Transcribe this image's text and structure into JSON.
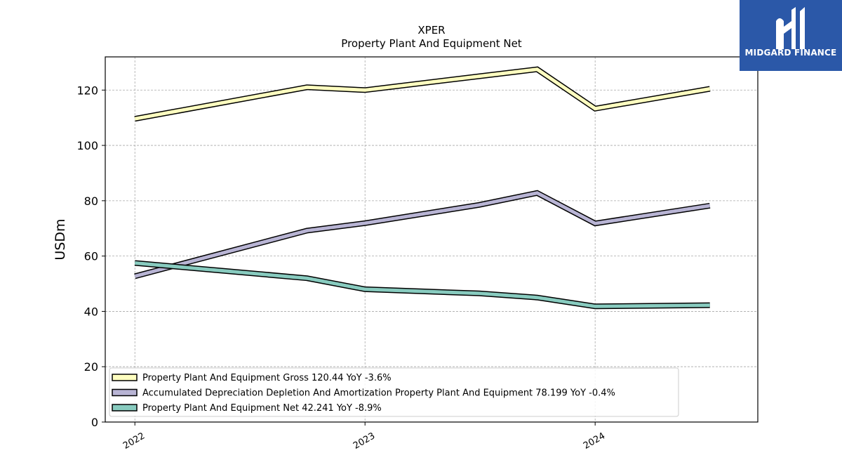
{
  "brand": {
    "name": "MIDGARD FINANCE",
    "bg_color": "#2b58a8"
  },
  "chart_data": {
    "type": "line",
    "title": "XPER",
    "subtitle": "Property Plant And Equipment Net",
    "xlabel": "",
    "ylabel": "USDm",
    "x_ticks": [
      "2022",
      "2023",
      "2024"
    ],
    "x": [
      "2022-01-01",
      "2022-10-01",
      "2023-01-01",
      "2023-07-01",
      "2023-10-01",
      "2024-01-01",
      "2024-07-01"
    ],
    "xlim": [
      "2021-11-15",
      "2024-09-15"
    ],
    "ylim": [
      0,
      132
    ],
    "yticks": [
      0,
      20,
      40,
      60,
      80,
      100,
      120
    ],
    "grid": true,
    "legend_position": "lower-left",
    "series": [
      {
        "name": "Property Plant And Equipment Gross",
        "legend_label": "Property Plant And Equipment Gross  120.44 YoY -3.6%",
        "color": "#ffffc0",
        "values": [
          109.6,
          121.0,
          120.0,
          125.0,
          127.5,
          113.3,
          120.44
        ]
      },
      {
        "name": "Accumulated Depreciation Depletion And Amortization Property Plant And Equipment",
        "legend_label": "Accumulated Depreciation Depletion And Amortization Property Plant And Equipment  78.199 YoY -0.4%",
        "color": "#b8b4d4",
        "values": [
          52.7,
          69.2,
          71.9,
          78.5,
          82.8,
          71.8,
          78.199
        ]
      },
      {
        "name": "Property Plant And Equipment Net",
        "legend_label": "Property Plant And Equipment Net  42.241 YoY -8.9%",
        "color": "#88cbbf",
        "values": [
          57.5,
          52.0,
          48.0,
          46.5,
          45.0,
          41.8,
          42.241
        ]
      }
    ]
  }
}
